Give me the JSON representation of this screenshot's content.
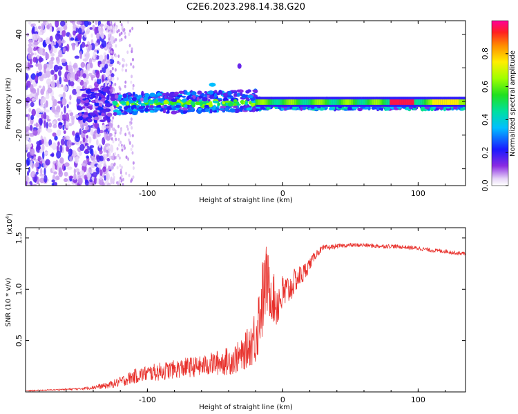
{
  "title": "C2E6.2023.298.14.38.G20",
  "chart_data": [
    {
      "type": "heatmap",
      "name": "spectrogram",
      "xlabel": "Height of straight line (km)",
      "ylabel": "Frequency (Hz)",
      "xlim": [
        -190,
        135
      ],
      "ylim": [
        -50,
        48
      ],
      "x_ticks": [
        -100,
        0,
        100
      ],
      "x_tick_labels": [
        "-100",
        "0",
        "100"
      ],
      "y_ticks": [
        -40,
        -20,
        0,
        20,
        40
      ],
      "y_tick_labels": [
        "-40",
        "-20",
        "0",
        "20",
        "40"
      ],
      "colorbar": {
        "label": "Normalized spectral amplitude",
        "range": [
          0,
          1
        ],
        "ticks": [
          0.0,
          0.2,
          0.4,
          0.6,
          0.8
        ],
        "tick_labels": [
          "0.0",
          "0.2",
          "0.4",
          "0.6",
          "0.8"
        ]
      },
      "regions": [
        {
          "x_range": [
            -190,
            -125
          ],
          "freq_range": [
            -50,
            48
          ],
          "amplitude": 0.15,
          "description_level": "diffuse"
        },
        {
          "x_range": [
            -125,
            -20
          ],
          "freq_range": [
            -8,
            5
          ],
          "amplitude": 0.35
        },
        {
          "x_range": [
            -20,
            135
          ],
          "freq_range": [
            -4,
            4
          ],
          "amplitude": 0.6
        },
        {
          "x_range": [
            80,
            95
          ],
          "freq_range": [
            -1,
            1
          ],
          "amplitude": 0.95
        }
      ]
    },
    {
      "type": "line",
      "name": "snr",
      "xlabel": "Height of straight line (km)",
      "ylabel": "SNR (10 * v/v)",
      "y_multiplier_label": "(x10",
      "y_multiplier_exp": "4",
      "y_multiplier_close": ")",
      "xlim": [
        -190,
        135
      ],
      "ylim": [
        0,
        1.6
      ],
      "x_ticks": [
        -100,
        0,
        100
      ],
      "x_tick_labels": [
        "-100",
        "0",
        "100"
      ],
      "y_ticks": [
        0.5,
        1.0,
        1.5
      ],
      "y_tick_labels": [
        "0.5",
        "1.0",
        "1.5"
      ],
      "series": [
        {
          "name": "SNR",
          "color": "#e8302b",
          "x": [
            -190,
            -170,
            -150,
            -130,
            -120,
            -110,
            -100,
            -90,
            -80,
            -70,
            -60,
            -50,
            -40,
            -30,
            -25,
            -20,
            -15,
            -12,
            -10,
            -8,
            -5,
            0,
            5,
            10,
            15,
            20,
            25,
            30,
            40,
            50,
            60,
            70,
            80,
            90,
            100,
            110,
            120,
            130,
            135
          ],
          "y": [
            0.01,
            0.02,
            0.03,
            0.06,
            0.1,
            0.15,
            0.18,
            0.2,
            0.22,
            0.24,
            0.25,
            0.28,
            0.3,
            0.35,
            0.45,
            0.55,
            0.9,
            1.1,
            1.0,
            0.95,
            0.85,
            0.95,
            1.0,
            1.1,
            1.15,
            1.25,
            1.35,
            1.4,
            1.42,
            1.43,
            1.43,
            1.42,
            1.42,
            1.41,
            1.4,
            1.38,
            1.37,
            1.35,
            1.35
          ],
          "noise": [
            0.005,
            0.005,
            0.01,
            0.03,
            0.05,
            0.07,
            0.08,
            0.09,
            0.09,
            0.1,
            0.1,
            0.12,
            0.14,
            0.16,
            0.2,
            0.3,
            0.4,
            0.35,
            0.3,
            0.25,
            0.25,
            0.2,
            0.15,
            0.12,
            0.1,
            0.06,
            0.04,
            0.03,
            0.02,
            0.02,
            0.02,
            0.02,
            0.02,
            0.02,
            0.02,
            0.02,
            0.02,
            0.02,
            0.02
          ]
        }
      ]
    }
  ]
}
